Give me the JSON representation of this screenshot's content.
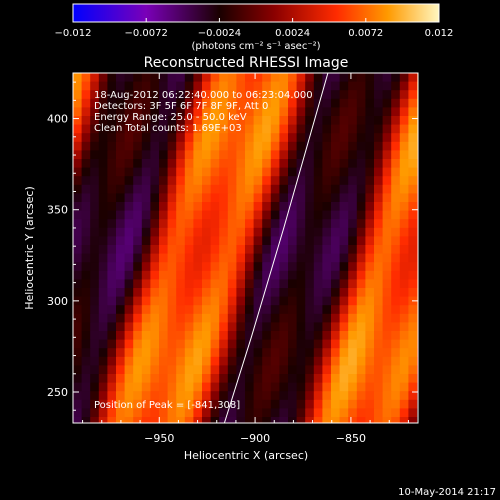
{
  "chart_data": {
    "type": "heatmap",
    "title": "Reconstructed RHESSI Image",
    "colorbar": {
      "min": -0.012,
      "max": 0.012,
      "ticks": [
        "-0.012",
        "-0.0072",
        "-0.0024",
        "0.0024",
        "0.0072",
        "0.012"
      ],
      "label": "(photons cm⁻² s⁻¹ asec⁻²)",
      "colormap": [
        "#0000ff",
        "#7a00b8",
        "#1a0000",
        "#8b0000",
        "#ff2b00",
        "#ff9a00",
        "#fff7c0"
      ]
    },
    "xlabel": "Heliocentric X (arcsec)",
    "ylabel": "Heliocentric Y (arcsec)",
    "xlim": [
      -995,
      -815
    ],
    "ylim": [
      233,
      425
    ],
    "xticks": [
      -950,
      -900,
      -850
    ],
    "xtick_labels": [
      "−950",
      "−900",
      "−850"
    ],
    "yticks": [
      250,
      300,
      350,
      400
    ],
    "annotations": [
      "18-Aug-2012 06:22:40.000 to 06:23:04.000",
      "Detectors: 3F 5F 6F 7F 8F 9F, Att 0",
      "Energy Range: 25.0 - 50.0 keV",
      "Clean     Total counts: 1.69E+03"
    ],
    "peak_label": "Position of Peak = [-841,308]",
    "limb_curve": [
      [
        -916,
        233
      ],
      [
        -902,
        280
      ],
      [
        -885,
        340
      ],
      [
        -862,
        425
      ]
    ],
    "footer": "10-May-2014 21:17"
  }
}
